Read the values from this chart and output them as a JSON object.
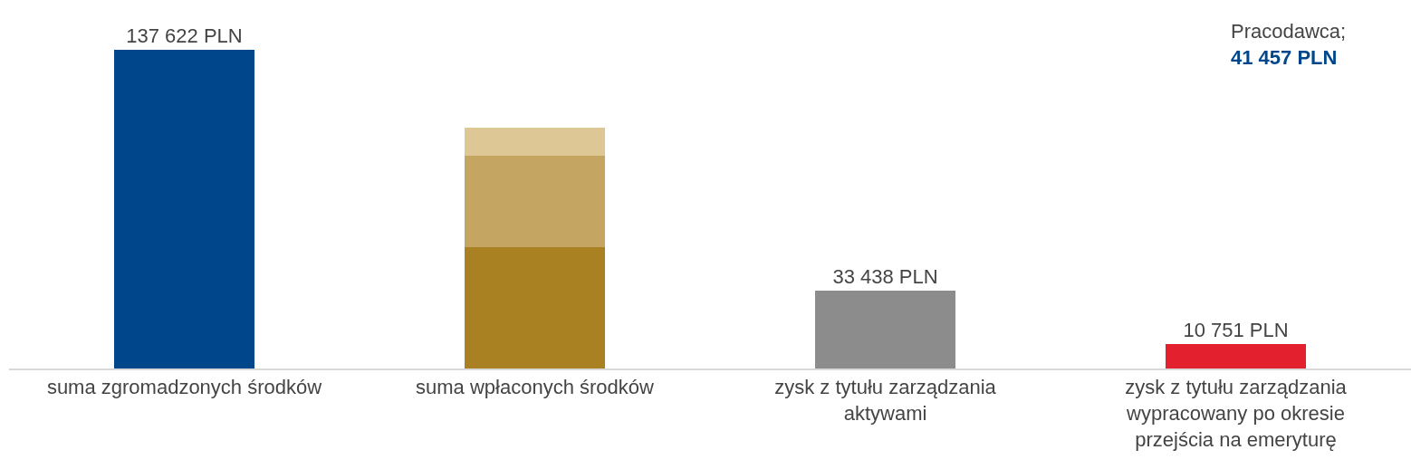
{
  "chart_data": {
    "type": "bar",
    "ylim": [
      0,
      137622
    ],
    "stacked": true,
    "tick_labels": "x",
    "categories": [
      "suma zgromadzonych środków",
      "suma wpłaconych środków",
      "zysk z tytułu zarządzania aktywami",
      "zysk z tytułu zarządzania wypracowany po okresie przejścia na emeryturę"
    ],
    "series": [
      {
        "colors": [
          "#00468b",
          "#a98022",
          "#8c8c8c",
          "#e3202d"
        ],
        "values": [
          137622,
          52400,
          33438,
          10751
        ],
        "value_labels": [
          "137 622 PLN",
          null,
          "33 438 PLN",
          "10 751 PLN"
        ]
      },
      {
        "color": "#c4a562",
        "values": [
          null,
          39500,
          null,
          null
        ]
      },
      {
        "color": "#dcc795",
        "values": [
          null,
          12100,
          null,
          null
        ]
      }
    ],
    "annotations": [
      "Pracodawca;\n41 457 PLN"
    ]
  }
}
